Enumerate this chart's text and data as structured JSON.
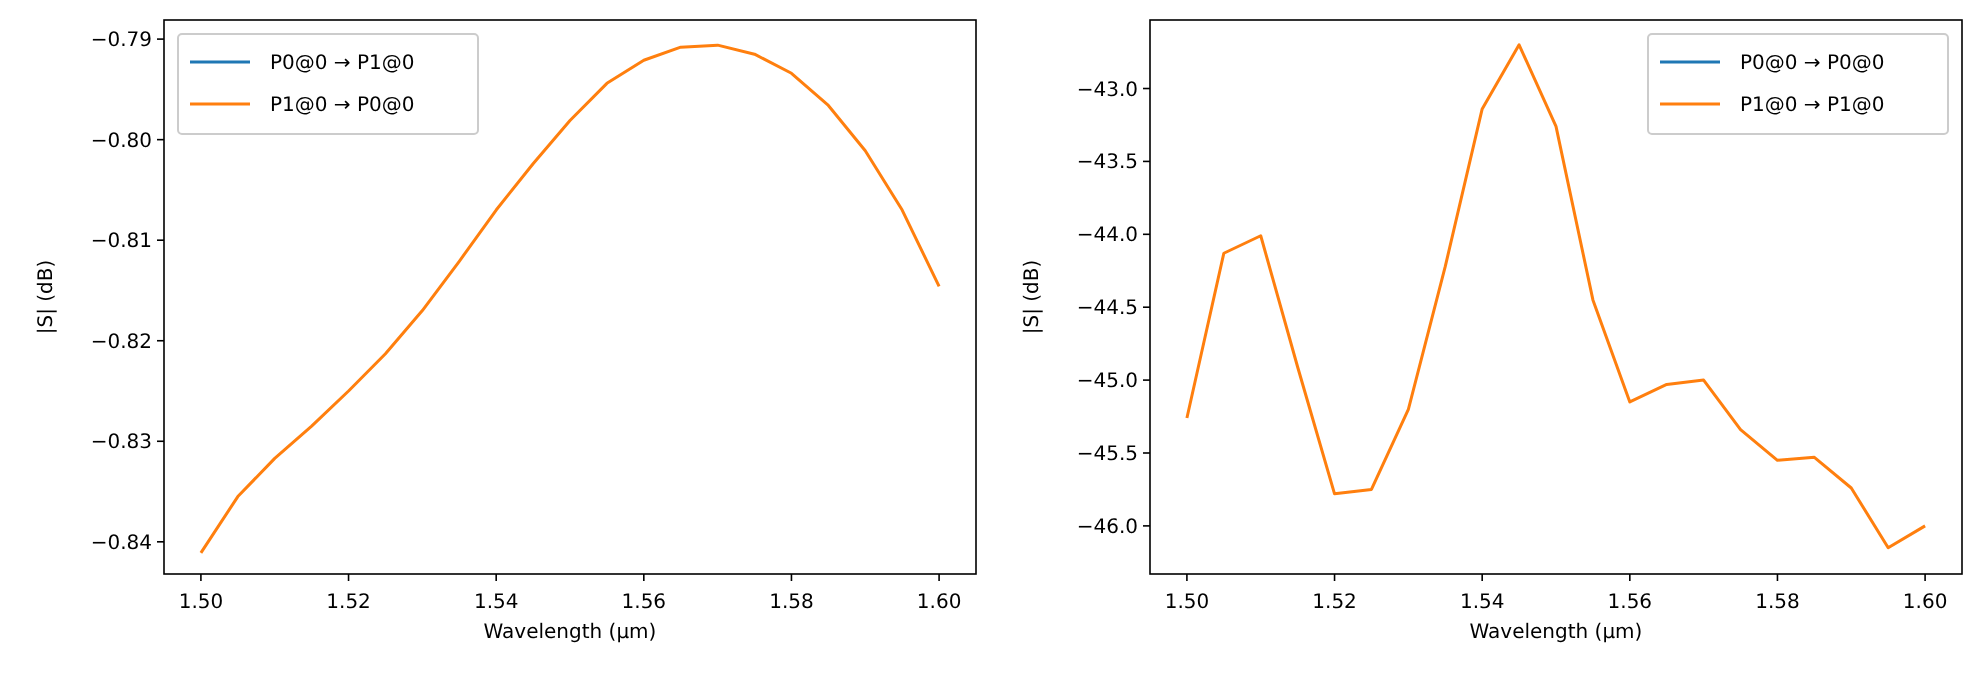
{
  "chart_data": [
    {
      "type": "line",
      "xlabel": "Wavelength (µm)",
      "ylabel": "|S| (dB)",
      "legend": "top left",
      "grid": false,
      "x": [
        1.5,
        1.505,
        1.51,
        1.515,
        1.52,
        1.525,
        1.53,
        1.535,
        1.54,
        1.545,
        1.55,
        1.555,
        1.56,
        1.565,
        1.57,
        1.575,
        1.58,
        1.585,
        1.59,
        1.595,
        1.6
      ],
      "xlim": [
        1.495,
        1.605
      ],
      "xticks": [
        {
          "value": 1.5,
          "label": "1.50"
        },
        {
          "value": 1.52,
          "label": "1.52"
        },
        {
          "value": 1.54,
          "label": "1.54"
        },
        {
          "value": 1.56,
          "label": "1.56"
        },
        {
          "value": 1.58,
          "label": "1.58"
        },
        {
          "value": 1.6,
          "label": "1.60"
        }
      ],
      "ylim": [
        -0.8432,
        -0.7881
      ],
      "yticks": [
        {
          "value": -0.84,
          "label": "−0.84"
        },
        {
          "value": -0.83,
          "label": "−0.83"
        },
        {
          "value": -0.82,
          "label": "−0.82"
        },
        {
          "value": -0.81,
          "label": "−0.81"
        },
        {
          "value": -0.8,
          "label": "−0.80"
        },
        {
          "value": -0.79,
          "label": "−0.79"
        }
      ],
      "series": [
        {
          "name": "P0@0 → P1@0",
          "color": "#1f77b4",
          "values": [
            null,
            null,
            null,
            null,
            null,
            null,
            null,
            null,
            null,
            null,
            null,
            null,
            null,
            null,
            null,
            null,
            null,
            null,
            null,
            null,
            null
          ]
        },
        {
          "name": "P1@0 → P0@0",
          "color": "#ff7f0e",
          "values": [
            -0.8411,
            -0.8355,
            -0.8317,
            -0.8285,
            -0.825,
            -0.8213,
            -0.817,
            -0.8121,
            -0.807,
            -0.8024,
            -0.7981,
            -0.7944,
            -0.7921,
            -0.7908,
            -0.7906,
            -0.7915,
            -0.7934,
            -0.7966,
            -0.8011,
            -0.807,
            -0.8146
          ]
        }
      ]
    },
    {
      "type": "line",
      "xlabel": "Wavelength (µm)",
      "ylabel": "|S| (dB)",
      "legend": "top right",
      "grid": false,
      "x": [
        1.5,
        1.505,
        1.51,
        1.515,
        1.52,
        1.525,
        1.53,
        1.535,
        1.54,
        1.545,
        1.55,
        1.555,
        1.56,
        1.565,
        1.57,
        1.575,
        1.58,
        1.585,
        1.59,
        1.595,
        1.6
      ],
      "xlim": [
        1.495,
        1.605
      ],
      "xticks": [
        {
          "value": 1.5,
          "label": "1.50"
        },
        {
          "value": 1.52,
          "label": "1.52"
        },
        {
          "value": 1.54,
          "label": "1.54"
        },
        {
          "value": 1.56,
          "label": "1.56"
        },
        {
          "value": 1.58,
          "label": "1.58"
        },
        {
          "value": 1.6,
          "label": "1.60"
        }
      ],
      "ylim": [
        -46.33,
        -42.53
      ],
      "yticks": [
        {
          "value": -46,
          "label": "−46.0"
        },
        {
          "value": -45.5,
          "label": "−45.5"
        },
        {
          "value": -45,
          "label": "−45.0"
        },
        {
          "value": -44.5,
          "label": "−44.5"
        },
        {
          "value": -44,
          "label": "−44.0"
        },
        {
          "value": -43.5,
          "label": "−43.5"
        },
        {
          "value": -43,
          "label": "−43.0"
        }
      ],
      "series": [
        {
          "name": "P0@0 → P0@0",
          "color": "#1f77b4",
          "values": [
            null,
            null,
            null,
            null,
            null,
            null,
            null,
            null,
            null,
            null,
            null,
            null,
            null,
            null,
            null,
            null,
            null,
            null,
            null,
            null,
            null
          ]
        },
        {
          "name": "P1@0 → P1@0",
          "color": "#ff7f0e",
          "values": [
            -45.26,
            -44.13,
            -44.01,
            -44.91,
            -45.78,
            -45.75,
            -45.2,
            -44.22,
            -43.14,
            -42.7,
            -43.26,
            -44.45,
            -45.15,
            -45.03,
            -45.0,
            -45.34,
            -45.55,
            -45.53,
            -45.74,
            -46.15,
            -46.0
          ]
        }
      ]
    }
  ]
}
